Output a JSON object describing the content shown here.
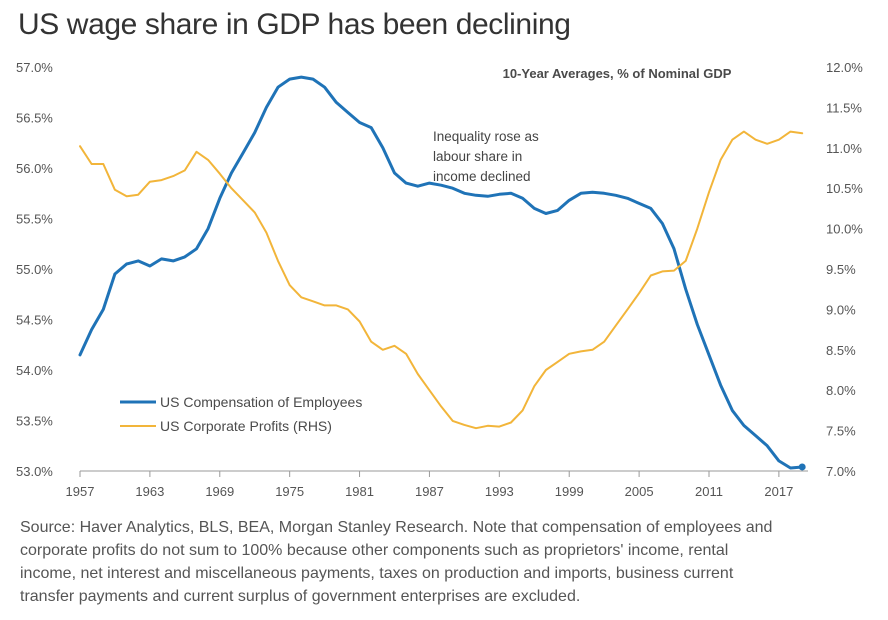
{
  "chart_data": {
    "type": "line",
    "title": "US wage share in GDP has been declining",
    "subtitle": "10-Year Averages, % of Nominal GDP",
    "annotation": [
      "Inequality rose as",
      "labour share in",
      "income declined"
    ],
    "x_tick_labels": [
      "1957",
      "1963",
      "1969",
      "1975",
      "1981",
      "1987",
      "1993",
      "1999",
      "2005",
      "2011",
      "2017"
    ],
    "xlim": [
      1957,
      2019.5
    ],
    "y_left": {
      "lim": [
        53.0,
        57.0
      ],
      "tick_labels": [
        "53.0%",
        "53.5%",
        "54.0%",
        "54.5%",
        "55.0%",
        "55.5%",
        "56.0%",
        "56.5%",
        "57.0%"
      ]
    },
    "y_right": {
      "lim": [
        7.0,
        12.0
      ],
      "tick_labels": [
        "7.0%",
        "7.5%",
        "8.0%",
        "8.5%",
        "9.0%",
        "9.5%",
        "10.0%",
        "10.5%",
        "11.0%",
        "11.5%",
        "12.0%"
      ]
    },
    "legend_position": "bottom-left",
    "series": [
      {
        "name": "US Compensation of Employees",
        "axis": "left",
        "color": "#1f73b7",
        "x": [
          1957,
          1958,
          1959,
          1960,
          1961,
          1962,
          1963,
          1964,
          1965,
          1966,
          1967,
          1968,
          1969,
          1970,
          1971,
          1972,
          1973,
          1974,
          1975,
          1976,
          1977,
          1978,
          1979,
          1980,
          1981,
          1982,
          1983,
          1984,
          1985,
          1986,
          1987,
          1988,
          1989,
          1990,
          1991,
          1992,
          1993,
          1994,
          1995,
          1996,
          1997,
          1998,
          1999,
          2000,
          2001,
          2002,
          2003,
          2004,
          2005,
          2006,
          2007,
          2008,
          2009,
          2010,
          2011,
          2012,
          2013,
          2014,
          2015,
          2016,
          2017,
          2018,
          2019
        ],
        "values": [
          54.15,
          54.4,
          54.6,
          54.95,
          55.05,
          55.08,
          55.03,
          55.1,
          55.08,
          55.12,
          55.2,
          55.4,
          55.7,
          55.95,
          56.15,
          56.35,
          56.6,
          56.8,
          56.88,
          56.9,
          56.88,
          56.8,
          56.65,
          56.55,
          56.45,
          56.4,
          56.2,
          55.95,
          55.85,
          55.82,
          55.85,
          55.83,
          55.8,
          55.75,
          55.73,
          55.72,
          55.74,
          55.75,
          55.7,
          55.6,
          55.55,
          55.58,
          55.68,
          55.75,
          55.76,
          55.75,
          55.73,
          55.7,
          55.65,
          55.6,
          55.45,
          55.2,
          54.8,
          54.45,
          54.15,
          53.85,
          53.6,
          53.45,
          53.35,
          53.25,
          53.1,
          53.03,
          53.04
        ]
      },
      {
        "name": "US Corporate Profits (RHS)",
        "axis": "right",
        "color": "#f2b53a",
        "x": [
          1957,
          1958,
          1959,
          1960,
          1961,
          1962,
          1963,
          1964,
          1965,
          1966,
          1967,
          1968,
          1969,
          1970,
          1971,
          1972,
          1973,
          1974,
          1975,
          1976,
          1977,
          1978,
          1979,
          1980,
          1981,
          1982,
          1983,
          1984,
          1985,
          1986,
          1987,
          1988,
          1989,
          1990,
          1991,
          1992,
          1993,
          1994,
          1995,
          1996,
          1997,
          1998,
          1999,
          2000,
          2001,
          2002,
          2003,
          2004,
          2005,
          2006,
          2007,
          2008,
          2009,
          2010,
          2011,
          2012,
          2013,
          2014,
          2015,
          2016,
          2017,
          2018,
          2019
        ],
        "values": [
          11.02,
          10.8,
          10.8,
          10.48,
          10.4,
          10.42,
          10.58,
          10.6,
          10.65,
          10.72,
          10.95,
          10.85,
          10.68,
          10.5,
          10.35,
          10.2,
          9.95,
          9.6,
          9.3,
          9.15,
          9.1,
          9.05,
          9.05,
          9.0,
          8.85,
          8.6,
          8.5,
          8.55,
          8.45,
          8.2,
          8.0,
          7.8,
          7.62,
          7.57,
          7.53,
          7.56,
          7.55,
          7.6,
          7.75,
          8.05,
          8.25,
          8.35,
          8.45,
          8.48,
          8.5,
          8.6,
          8.8,
          9.0,
          9.2,
          9.42,
          9.47,
          9.48,
          9.6,
          10.0,
          10.45,
          10.85,
          11.1,
          11.2,
          11.1,
          11.05,
          11.1,
          11.2,
          11.18
        ]
      }
    ]
  },
  "source_lines": [
    "Source: Haver Analytics, BLS, BEA, Morgan Stanley Research. Note that compensation of employees and",
    "corporate profits do not sum to 100% because other components such as proprietors' income, rental",
    "income, net interest and miscellaneous payments, taxes on production and imports, business current",
    "transfer payments and current surplus of government enterprises are excluded."
  ]
}
